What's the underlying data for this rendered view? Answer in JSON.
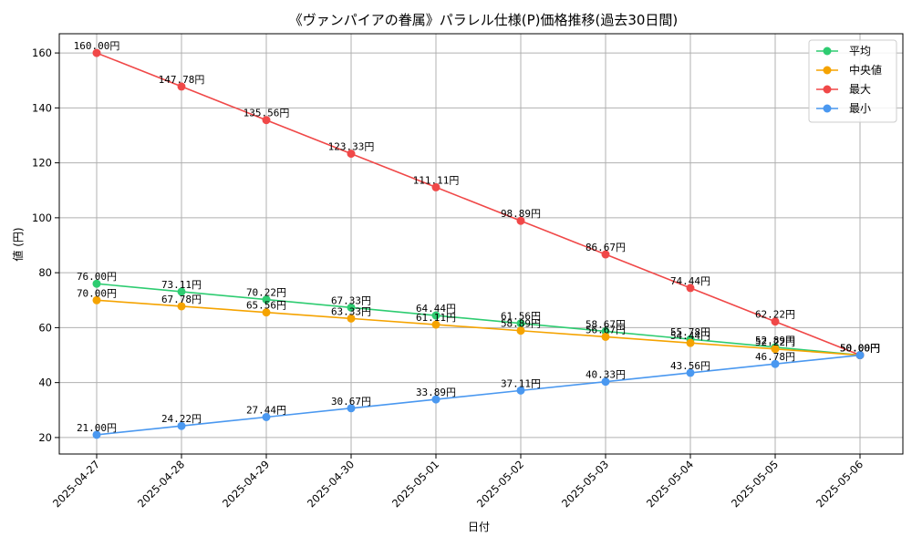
{
  "chart_data": {
    "type": "line",
    "title": "《ヴァンパイアの眷属》パラレル仕様(P)価格推移(過去30日間)",
    "xlabel": "日付",
    "ylabel": "値 (円)",
    "value_suffix": "円",
    "x": [
      "2025-04-27",
      "2025-04-28",
      "2025-04-29",
      "2025-04-30",
      "2025-05-01",
      "2025-05-02",
      "2025-05-03",
      "2025-05-04",
      "2025-05-05",
      "2025-05-06"
    ],
    "y_ticks": [
      20,
      40,
      60,
      80,
      100,
      120,
      140,
      160
    ],
    "ylim": [
      14,
      167
    ],
    "grid": true,
    "legend_position": "top-right",
    "series": [
      {
        "name": "平均",
        "color": "#2ecc71",
        "values": [
          76.0,
          73.11,
          70.22,
          67.33,
          64.44,
          61.56,
          58.67,
          55.78,
          52.89,
          50.0
        ]
      },
      {
        "name": "中央値",
        "color": "#f5a300",
        "values": [
          70.0,
          67.78,
          65.56,
          63.33,
          61.11,
          58.89,
          56.67,
          54.44,
          52.22,
          50.0
        ]
      },
      {
        "name": "最大",
        "color": "#f04848",
        "values": [
          160.0,
          147.78,
          135.56,
          123.33,
          111.11,
          98.89,
          86.67,
          74.44,
          62.22,
          50.0
        ]
      },
      {
        "name": "最小",
        "color": "#4a98f0",
        "values": [
          21.0,
          24.22,
          27.44,
          30.67,
          33.89,
          37.11,
          40.33,
          43.56,
          46.78,
          50.0
        ]
      }
    ]
  }
}
